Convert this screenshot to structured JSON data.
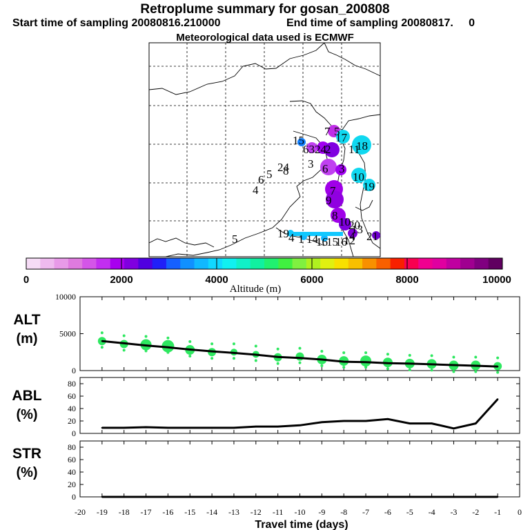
{
  "header": {
    "title": "Retroplume summary for gosan_200808",
    "start": "Start time of sampling 20080816.210000",
    "end": "End time of sampling 20080817.     0",
    "met": "Meteorological data used is ECMWF"
  },
  "map": {
    "labels": [
      "7",
      "5",
      "17",
      "18",
      "15",
      "63",
      "24",
      "2",
      "11",
      "3",
      "6",
      "3",
      "24",
      "8",
      "10",
      "6",
      "5",
      "4",
      "19",
      "7",
      "9",
      "8",
      "10",
      "20",
      "21",
      "4",
      "5",
      "12",
      "19",
      "4",
      "1",
      "14",
      "16",
      "15",
      "16",
      "13"
    ]
  },
  "colorbar": {
    "label": "Altitude (m)",
    "ticks": [
      "0",
      "2000",
      "4000",
      "6000",
      "8000",
      "10000"
    ],
    "colors": [
      "#f6dcf6",
      "#efbaef",
      "#e89ae8",
      "#df7adf",
      "#d455e8",
      "#c22ef0",
      "#a800ef",
      "#8000e0",
      "#5000e0",
      "#2020f8",
      "#1560ff",
      "#1090ff",
      "#10b8ff",
      "#10d8ff",
      "#10f0f0",
      "#10f0c8",
      "#10f0a0",
      "#20f070",
      "#40f040",
      "#80f040",
      "#b0f020",
      "#e0f010",
      "#f8e000",
      "#f8c000",
      "#f89000",
      "#f86000",
      "#f82000",
      "#f80050",
      "#f00090",
      "#e000a0",
      "#c000a0",
      "#a00090",
      "#800080",
      "#600060"
    ]
  },
  "chart_data": [
    {
      "type": "line",
      "panel": "ALT",
      "ylabel": "ALT\n(m)",
      "ylim": [
        0,
        10000
      ],
      "yticks": [
        0,
        5000,
        10000
      ],
      "x": [
        -19,
        -18,
        -17,
        -16,
        -15,
        -14,
        -13,
        -12,
        -11,
        -10,
        -9,
        -8,
        -7,
        -6,
        -5,
        -4,
        -3,
        -2,
        -1
      ],
      "values": [
        4000,
        3700,
        3400,
        3150,
        2850,
        2600,
        2400,
        2150,
        1850,
        1700,
        1500,
        1200,
        1150,
        1000,
        950,
        850,
        750,
        650,
        550
      ],
      "spread_markers": [
        4000,
        3600,
        3500,
        3300,
        2800,
        2500,
        2500,
        2200,
        1800,
        1900,
        1500,
        1300,
        1300,
        1100,
        950,
        900,
        700,
        700,
        600
      ]
    },
    {
      "type": "line",
      "panel": "ABL",
      "ylabel": "ABL\n(%)",
      "ylim": [
        0,
        90
      ],
      "yticks": [
        0,
        20,
        40,
        60,
        80
      ],
      "x": [
        -19,
        -18,
        -17,
        -16,
        -15,
        -14,
        -13,
        -12,
        -11,
        -10,
        -9,
        -8,
        -7,
        -6,
        -5,
        -4,
        -3,
        -2,
        -1
      ],
      "values": [
        9,
        9,
        10,
        9,
        9,
        9,
        9,
        11,
        11,
        13,
        18,
        20,
        20,
        23,
        16,
        16,
        8,
        16,
        55
      ]
    },
    {
      "type": "line",
      "panel": "STR",
      "ylabel": "STR\n(%)",
      "ylim": [
        0,
        90
      ],
      "yticks": [
        0,
        20,
        40,
        60,
        80
      ],
      "x": [
        -19,
        -18,
        -17,
        -16,
        -15,
        -14,
        -13,
        -12,
        -11,
        -10,
        -9,
        -8,
        -7,
        -6,
        -5,
        -4,
        -3,
        -2,
        -1
      ],
      "values": [
        0,
        0,
        0,
        0,
        0,
        0,
        0,
        0,
        0,
        0,
        0,
        0,
        0,
        0,
        0,
        0,
        0,
        0,
        0
      ]
    }
  ],
  "xaxis": {
    "label": "Travel time (days)",
    "ticks": [
      "-20",
      "-19",
      "-18",
      "-17",
      "-16",
      "-15",
      "-14",
      "-13",
      "-12",
      "-11",
      "-10",
      "-9",
      "-8",
      "-7",
      "-6",
      "-5",
      "-4",
      "-3",
      "-2",
      "-1",
      "0"
    ]
  },
  "colors": {
    "line": "#000000",
    "marker": "#2ee860"
  }
}
